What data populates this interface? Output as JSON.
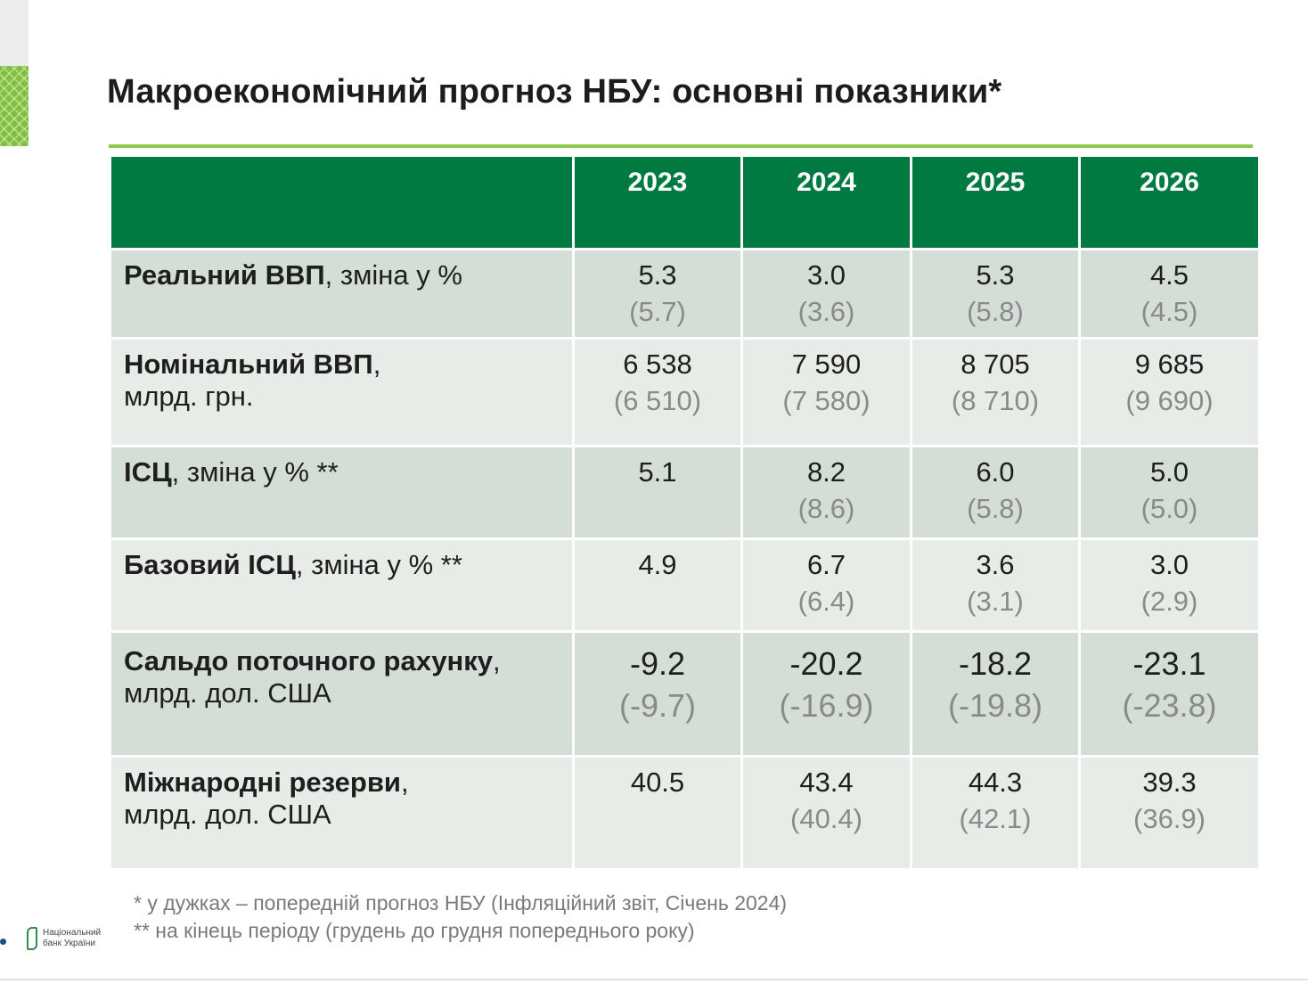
{
  "title": "Макроекономічний прогноз НБУ: основні показники*",
  "table": {
    "headers": [
      "",
      "2023",
      "2024",
      "2025",
      "2026"
    ],
    "rows": [
      {
        "label_bold": "Реальний ВВП",
        "label_rest": ", зміна у %",
        "label_line2": "",
        "values": [
          {
            "current": "5.3",
            "previous": "(5.7)"
          },
          {
            "current": "3.0",
            "previous": "(3.6)"
          },
          {
            "current": "5.3",
            "previous": "(5.8)"
          },
          {
            "current": "4.5",
            "previous": "(4.5)"
          }
        ]
      },
      {
        "label_bold": "Номінальний ВВП",
        "label_rest": ",",
        "label_line2": "млрд. грн.",
        "values": [
          {
            "current": "6 538",
            "previous": "(6 510)"
          },
          {
            "current": "7 590",
            "previous": "(7 580)"
          },
          {
            "current": "8 705",
            "previous": "(8 710)"
          },
          {
            "current": "9 685",
            "previous": "(9 690)"
          }
        ]
      },
      {
        "label_bold": "ІСЦ",
        "label_rest": ", зміна у % **",
        "label_line2": "",
        "values": [
          {
            "current": "5.1",
            "previous": ""
          },
          {
            "current": "8.2",
            "previous": "(8.6)"
          },
          {
            "current": "6.0",
            "previous": "(5.8)"
          },
          {
            "current": "5.0",
            "previous": "(5.0)"
          }
        ]
      },
      {
        "label_bold": "Базовий ІСЦ",
        "label_rest": ", зміна у % **",
        "label_line2": "",
        "values": [
          {
            "current": "4.9",
            "previous": ""
          },
          {
            "current": "6.7",
            "previous": "(6.4)"
          },
          {
            "current": "3.6",
            "previous": "(3.1)"
          },
          {
            "current": "3.0",
            "previous": "(2.9)"
          }
        ]
      },
      {
        "label_bold": "Сальдо поточного рахунку",
        "label_rest": ",",
        "label_line2": "млрд. дол. США",
        "values": [
          {
            "current": "-9.2",
            "previous": "(-9.7)"
          },
          {
            "current": "-20.2",
            "previous": "(-16.9)"
          },
          {
            "current": "-18.2",
            "previous": "(-19.8)"
          },
          {
            "current": "-23.1",
            "previous": "(-23.8)"
          }
        ]
      },
      {
        "label_bold": "Міжнародні резерви",
        "label_rest": ",",
        "label_line2": "млрд. дол. США",
        "values": [
          {
            "current": "40.5",
            "previous": ""
          },
          {
            "current": "43.4",
            "previous": "(40.4)"
          },
          {
            "current": "44.3",
            "previous": "(42.1)"
          },
          {
            "current": "39.3",
            "previous": "(36.9)"
          }
        ]
      }
    ]
  },
  "footnotes": [
    "* у дужках – попередній прогноз НБУ (Інфляційний звіт, Січень 2024)",
    "** на кінець періоду (грудень до грудня попереднього року)"
  ],
  "logo": {
    "line1": "Національний",
    "line2": "банк України"
  },
  "colors": {
    "header_green": "#007a40",
    "accent_green": "#8cc84b",
    "row_dark": "#d4ddd6",
    "row_light": "#e8ece9"
  }
}
